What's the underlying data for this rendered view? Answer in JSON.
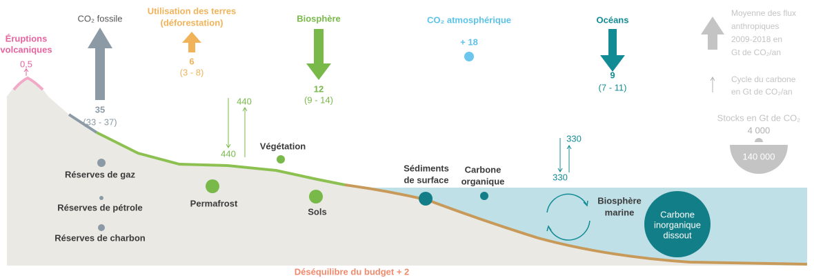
{
  "volcanic": {
    "label": [
      "Éruptions",
      "volcaniques"
    ],
    "flux": "0,5"
  },
  "fossil": {
    "label": "CO₂ fossile",
    "value": "35",
    "range": "(33 - 37)"
  },
  "land_use": {
    "label": [
      "Utilisation des terres",
      "(déforestation)"
    ],
    "value": "6",
    "range": "(3 - 8)"
  },
  "biosphere": {
    "label": "Biosphère",
    "value": "12",
    "range": "(9 - 14)"
  },
  "atmosphere": {
    "label": "CO₂ atmosphérique",
    "value": "+ 18"
  },
  "oceans": {
    "label": "Océans",
    "value": "9",
    "range": "(7 - 11)"
  },
  "legend": {
    "anthropic": [
      "Moyenne des flux",
      "anthropiques",
      "2009-2018 en",
      "Gt de CO₂/an"
    ],
    "cycle": [
      "Cycle du carbone",
      "en Gt de CO₂/an"
    ],
    "stocks": "Stocks en Gt de CO₂",
    "small_stock": "4 000",
    "big_stock": "140 000"
  },
  "land_cycle": {
    "down": "440",
    "up": "440"
  },
  "ocean_cycle": {
    "down": "330",
    "up": "330"
  },
  "stocks": {
    "vegetation": "Végétation",
    "gas": "Réserves de gaz",
    "oil": "Réserves de pétrole",
    "coal": "Réserves de charbon",
    "permafrost": "Permafrost",
    "soils": "Sols",
    "sediments": [
      "Sédiments",
      "de surface"
    ],
    "organic": [
      "Carbone",
      "organique"
    ],
    "marine": [
      "Biosphère",
      "marine"
    ],
    "dissolved": [
      "Carbone",
      "inorganique",
      "dissout"
    ]
  },
  "imbalance": "Déséquilibre du budget + 2"
}
